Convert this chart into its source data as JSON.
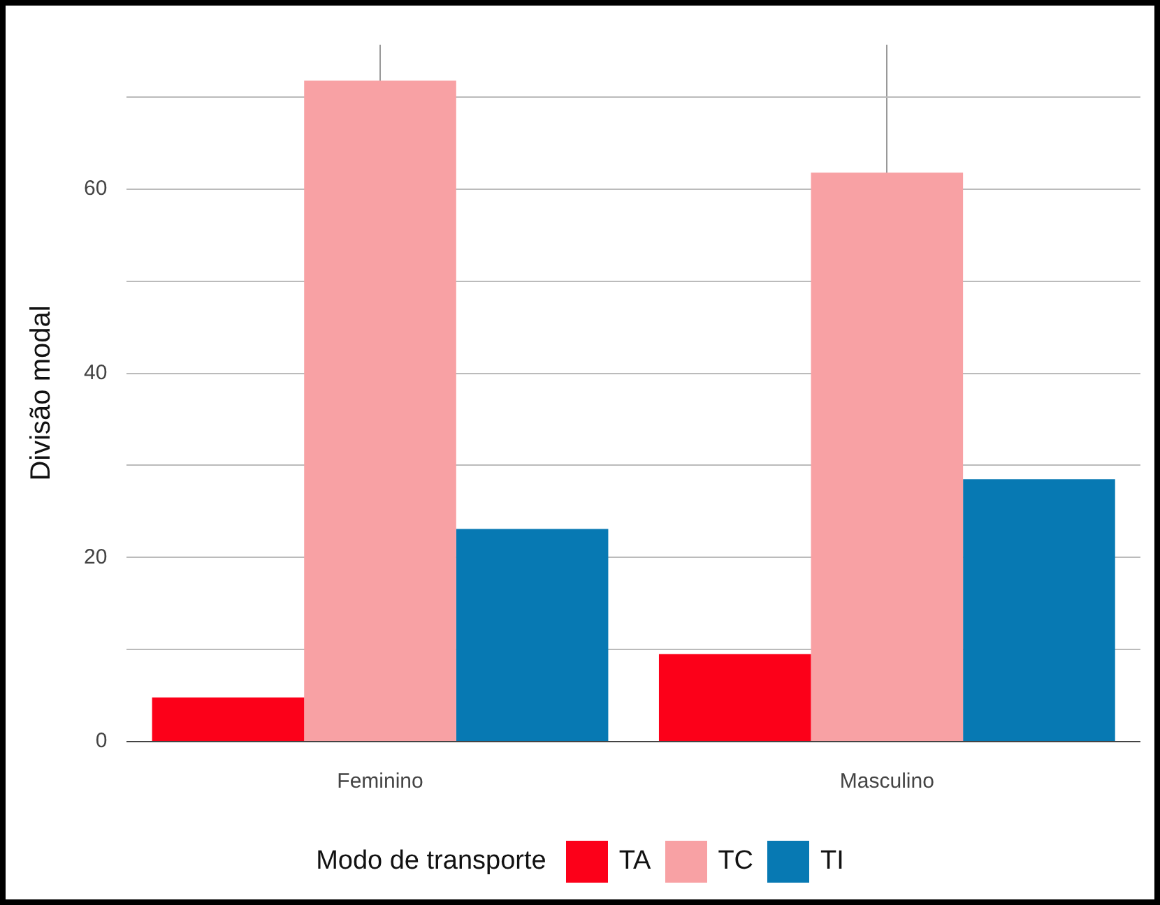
{
  "chart_data": {
    "type": "bar",
    "ylabel": "Divisão modal",
    "legend_title": "Modo de transporte",
    "categories": [
      "Feminino",
      "Masculino"
    ],
    "series": [
      {
        "name": "TA",
        "color": "#fc0019",
        "values": [
          4.8,
          9.5
        ]
      },
      {
        "name": "TC",
        "color": "#f8a1a4",
        "values": [
          71.8,
          61.8
        ]
      },
      {
        "name": "TI",
        "color": "#0779b3",
        "values": [
          23.1,
          28.5
        ]
      }
    ],
    "ylim": [
      0,
      75.7
    ],
    "yticks": [
      0,
      {
        "value": 10,
        "label": null
      },
      20,
      {
        "value": 30,
        "label": null
      },
      40,
      {
        "value": 50,
        "label": null
      },
      60,
      {
        "value": 70,
        "label": null
      }
    ],
    "grid": true,
    "legend": "bottom"
  }
}
